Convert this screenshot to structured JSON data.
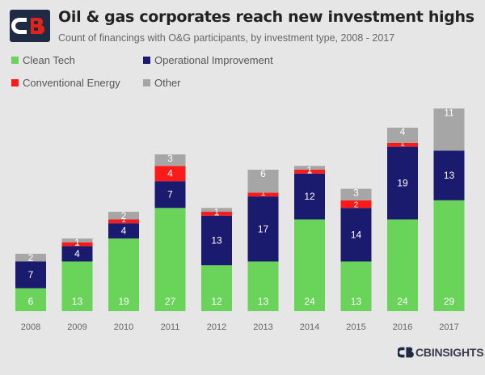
{
  "header": {
    "title": "Oil & gas corporates reach new investment highs",
    "subtitle": "Count of financings with O&G participants, by investment type, 2008 - 2017"
  },
  "brand": {
    "name": "CBINSIGHTS",
    "logo_icon": "cb-insights-logo-icon"
  },
  "colors": {
    "clean_tech": "#6ad45a",
    "operational": "#1a1a6e",
    "conventional": "#ff1a1a",
    "other": "#a6a6a6",
    "logo_dark": "#1f2a44",
    "logo_red": "#e2231a"
  },
  "chart_data": {
    "type": "bar",
    "stacked": true,
    "categories": [
      "2008",
      "2009",
      "2010",
      "2011",
      "2012",
      "2013",
      "2014",
      "2015",
      "2016",
      "2017"
    ],
    "series": [
      {
        "name": "Clean Tech",
        "values": [
          6,
          13,
          19,
          27,
          12,
          13,
          24,
          13,
          24,
          29
        ]
      },
      {
        "name": "Operational Improvement",
        "values": [
          7,
          4,
          4,
          7,
          13,
          17,
          12,
          14,
          19,
          13
        ]
      },
      {
        "name": "Conventional Energy",
        "values": [
          0,
          1,
          1,
          4,
          1,
          1,
          1,
          2,
          1,
          0
        ]
      },
      {
        "name": "Other",
        "values": [
          2,
          1,
          2,
          3,
          1,
          6,
          1,
          3,
          4,
          11
        ]
      }
    ],
    "title": "Oil & gas corporates reach new investment highs",
    "xlabel": "",
    "ylabel": "",
    "legend": "top-left",
    "grid": false
  }
}
